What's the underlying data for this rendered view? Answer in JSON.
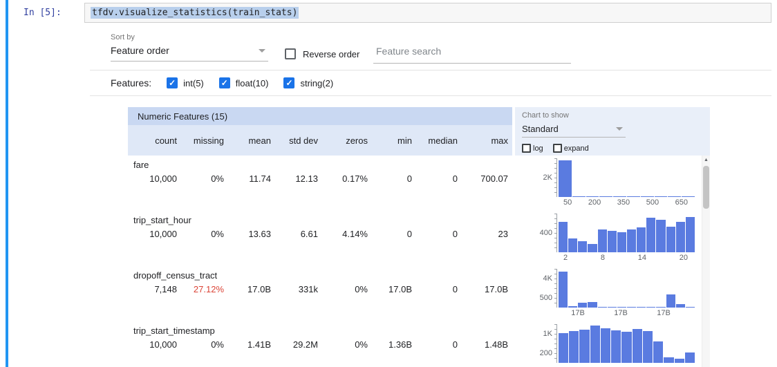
{
  "notebook": {
    "prompt": "In [5]:",
    "code": "tfdv.visualize_statistics(train_stats)"
  },
  "controls": {
    "sort_by_label": "Sort by",
    "sort_by_value": "Feature order",
    "reverse_order_label": "Reverse order",
    "search_placeholder": "Feature search",
    "features_label": "Features:",
    "feature_filters": [
      {
        "label": "int(5)",
        "checked": true
      },
      {
        "label": "float(10)",
        "checked": true
      },
      {
        "label": "string(2)",
        "checked": true
      }
    ]
  },
  "chart_panel": {
    "label": "Chart to show",
    "value": "Standard",
    "log_label": "log",
    "expand_label": "expand"
  },
  "table": {
    "title": "Numeric Features (15)",
    "columns": [
      "count",
      "missing",
      "mean",
      "std dev",
      "zeros",
      "min",
      "median",
      "max"
    ],
    "rows": [
      {
        "name": "fare",
        "values": [
          "10,000",
          "0%",
          "11.74",
          "12.13",
          "0.17%",
          "0",
          "0",
          "700.07"
        ],
        "hist": {
          "type": "bar",
          "y_labels": [
            "2K"
          ],
          "x_labels": [
            "50",
            "200",
            "350",
            "500",
            "650"
          ],
          "values": [
            2450,
            70,
            30,
            18,
            12,
            9,
            7,
            5,
            4,
            3
          ],
          "ymax": 2600
        }
      },
      {
        "name": "trip_start_hour",
        "values": [
          "10,000",
          "0%",
          "13.63",
          "6.61",
          "4.14%",
          "0",
          "0",
          "23"
        ],
        "hist": {
          "type": "bar",
          "y_labels": [
            "400"
          ],
          "x_labels": [
            "2",
            "8",
            "14",
            "20"
          ],
          "values": [
            560,
            260,
            210,
            160,
            420,
            400,
            370,
            430,
            460,
            640,
            600,
            470,
            560,
            660
          ],
          "ymax": 720
        }
      },
      {
        "name": "dropoff_census_tract",
        "values": [
          "7,148",
          "27.12%",
          "17.0B",
          "331k",
          "0%",
          "17.0B",
          "0",
          "17.0B"
        ],
        "missing_alert": true,
        "hist": {
          "type": "bar",
          "y_labels": [
            "4K",
            "500"
          ],
          "x_labels": [
            "17B",
            "17B",
            "17B"
          ],
          "packed": true,
          "values": [
            4100,
            150,
            560,
            600,
            90,
            60,
            45,
            40,
            35,
            30,
            30,
            1500,
            400,
            80
          ],
          "ymax": 4400
        }
      },
      {
        "name": "trip_start_timestamp",
        "values": [
          "10,000",
          "0%",
          "1.41B",
          "29.2M",
          "0%",
          "1.36B",
          "0",
          "1.48B"
        ],
        "hist": {
          "type": "bar",
          "y_labels": [
            "1K",
            "200"
          ],
          "x_labels": [],
          "values": [
            760,
            820,
            860,
            960,
            900,
            840,
            800,
            880,
            830,
            560,
            140,
            110,
            260
          ],
          "ymax": 1000
        }
      }
    ]
  },
  "colors": {
    "histogram_bar": "#5a7be0",
    "missing_alert": "#db4437",
    "checkbox_accent": "#1a73e8",
    "cell_selection_bar": "#2196f3"
  }
}
